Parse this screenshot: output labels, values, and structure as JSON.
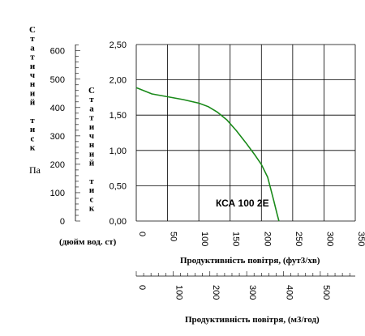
{
  "chart_data": {
    "type": "line",
    "x": [
      0,
      25,
      50,
      75,
      100,
      115,
      130,
      145,
      160,
      175,
      190,
      200,
      210,
      215,
      220,
      225,
      228
    ],
    "series": [
      {
        "name": "КСА 100 2Е",
        "color": "#1a8a1a",
        "values": [
          1.89,
          1.8,
          1.76,
          1.72,
          1.67,
          1.62,
          1.54,
          1.43,
          1.28,
          1.11,
          0.93,
          0.8,
          0.62,
          0.45,
          0.28,
          0.1,
          0.0
        ]
      }
    ],
    "xlim": [
      0,
      350
    ],
    "ylim": [
      0,
      2.5
    ],
    "x_ticks": [
      "0",
      "50",
      "100",
      "150",
      "200",
      "250",
      "300",
      "350"
    ],
    "y_ticks": [
      "0,00",
      "0,50",
      "1,00",
      "1,50",
      "2,00",
      "2,50"
    ],
    "xlabel": "Продуктивність повітря, (фут3/хв)",
    "ylabel": "(дюйм вод. ст)",
    "pa_axis": {
      "label_vertical": "Статичний тиск",
      "unit": "Па",
      "ticks": [
        "0",
        "100",
        "200",
        "300",
        "400",
        "500",
        "600"
      ],
      "range": [
        0,
        622
      ]
    },
    "inwg_axis_label_vertical": "Статичний тиск",
    "m3h_axis": {
      "label": "Продуктивність повітря, (м3/год)",
      "ticks": [
        "0",
        "100",
        "200",
        "300",
        "400",
        "500"
      ],
      "range": [
        0,
        595
      ]
    },
    "grid": true
  }
}
